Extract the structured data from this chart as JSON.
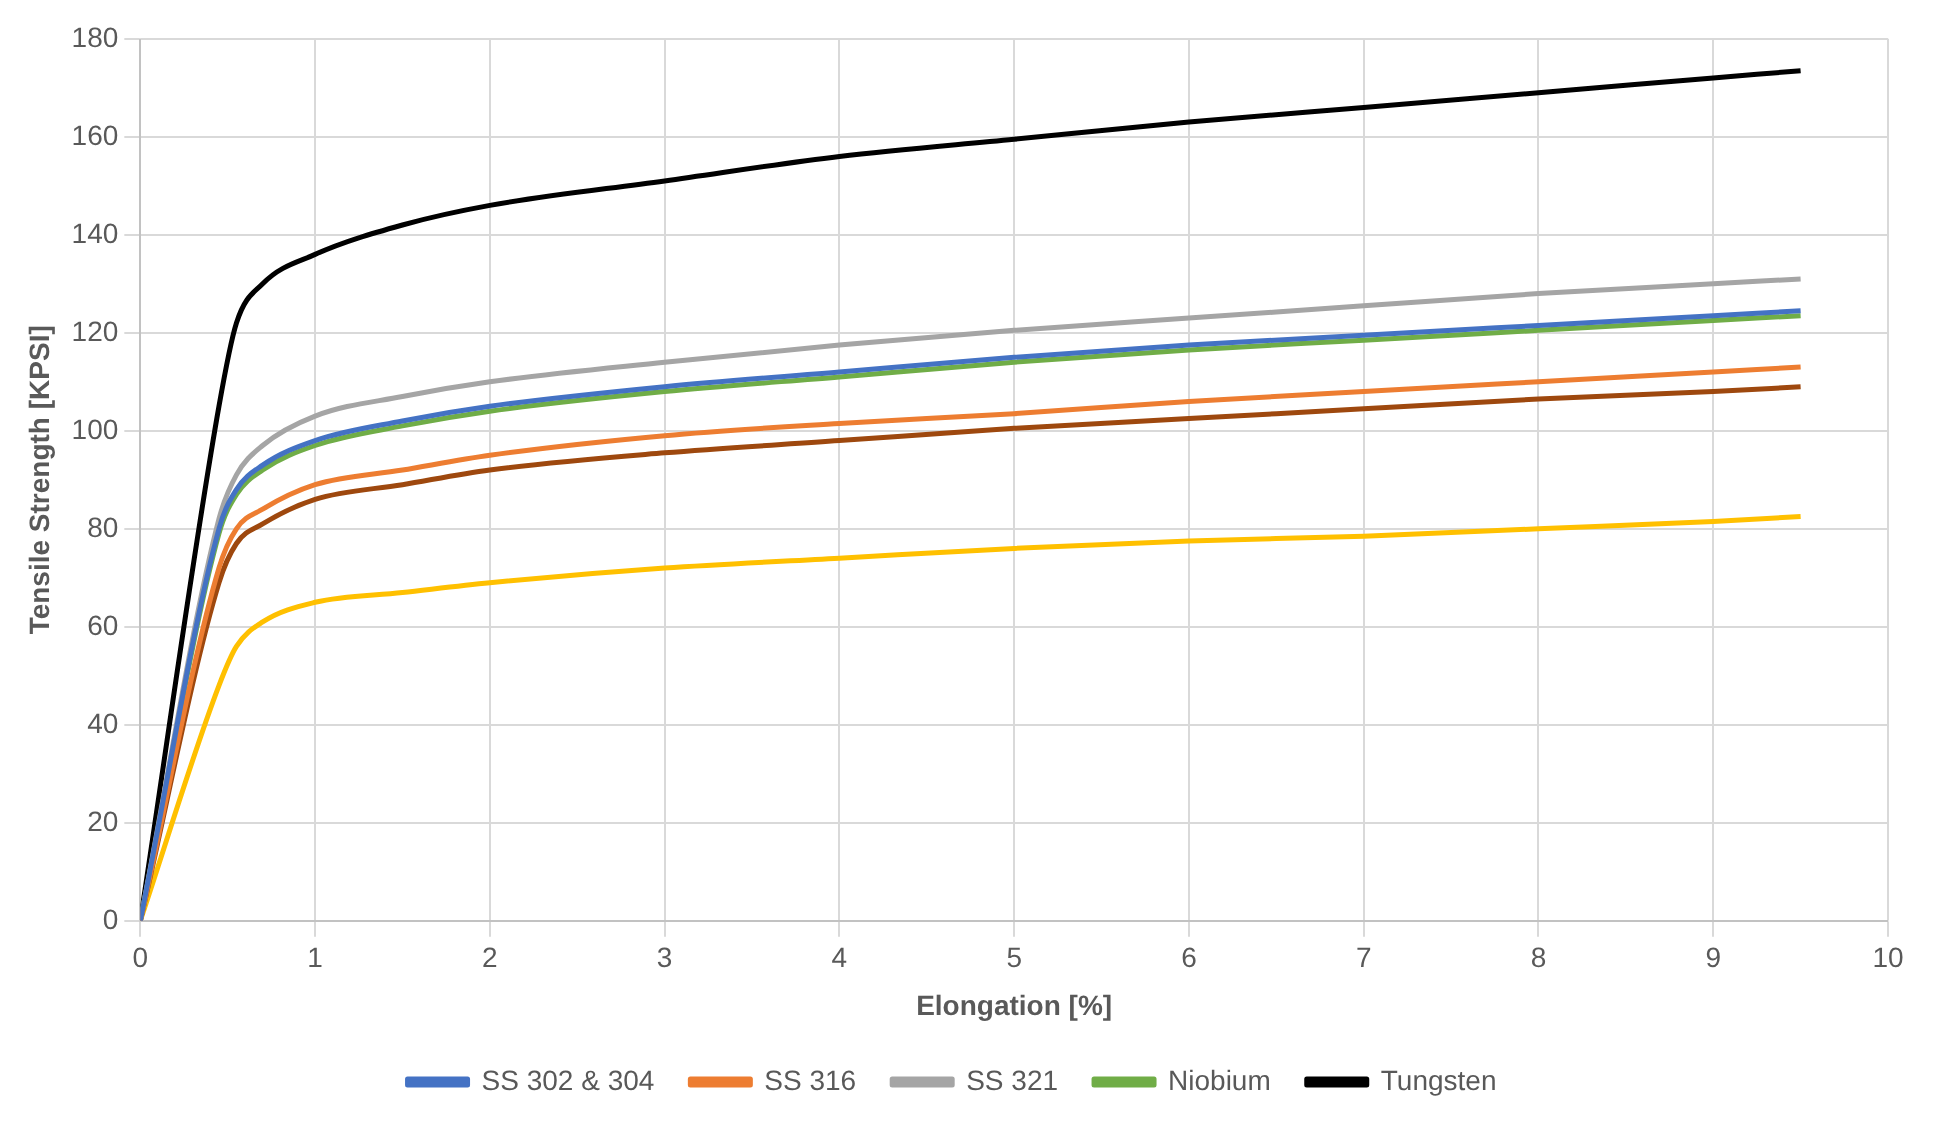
{
  "chart_data": {
    "type": "line",
    "xlabel": "Elongation [%]",
    "ylabel": "Tensile Strength [KPSI]",
    "xlim": [
      0,
      10
    ],
    "xticks": [
      0,
      1,
      2,
      3,
      4,
      5,
      6,
      7,
      8,
      9,
      10
    ],
    "ylim": [
      0,
      180
    ],
    "yticks": [
      0,
      20,
      40,
      60,
      80,
      100,
      120,
      140,
      160,
      180
    ],
    "grid": true,
    "legend": "bottom",
    "marker": "none",
    "line_style": "solid",
    "x": [
      0,
      0.45,
      0.55,
      0.7,
      1,
      1.5,
      2,
      3,
      4,
      5,
      6,
      7,
      8,
      9,
      9.5
    ],
    "series": [
      {
        "name": "SS 302 & 304",
        "color": "#4472c4",
        "values": [
          0,
          80,
          88,
          93,
          98,
          102,
          105,
          109,
          112,
          115,
          117.5,
          119.5,
          121.5,
          123.5,
          124.5
        ]
      },
      {
        "name": "SS 316",
        "color": "#ed7d31",
        "values": [
          0,
          72,
          80,
          84,
          89,
          92,
          95,
          99,
          101.5,
          103.5,
          106,
          108,
          110,
          112,
          113
        ]
      },
      {
        "name": "SS 321",
        "color": "#a5a5a5",
        "values": [
          0,
          82,
          91,
          97,
          103,
          107,
          110,
          114,
          117.5,
          120.5,
          123,
          125.5,
          128,
          130,
          131
        ]
      },
      {
        "name": "Niobium",
        "color": "#70ad47",
        "values": [
          0,
          79,
          87,
          92,
          97,
          101,
          104,
          108,
          111,
          114,
          116.5,
          118.5,
          120.5,
          122.5,
          123.5
        ]
      },
      {
        "color": "#9e480e",
        "values": [
          0,
          69,
          77,
          81,
          86,
          89,
          92,
          95.5,
          98,
          100.5,
          102.5,
          104.5,
          106.5,
          108,
          109
        ]
      },
      {
        "color": "#ffc000",
        "values": [
          0,
          48,
          56,
          61,
          65,
          67,
          69,
          72,
          74,
          76,
          77.5,
          78.5,
          80,
          81.5,
          82.5
        ]
      },
      {
        "name": "Tungsten",
        "color": "#000000",
        "values": [
          0,
          105,
          122,
          130,
          136,
          142,
          146,
          151,
          156,
          159.5,
          163,
          166,
          169,
          172,
          173.5
        ]
      }
    ]
  }
}
